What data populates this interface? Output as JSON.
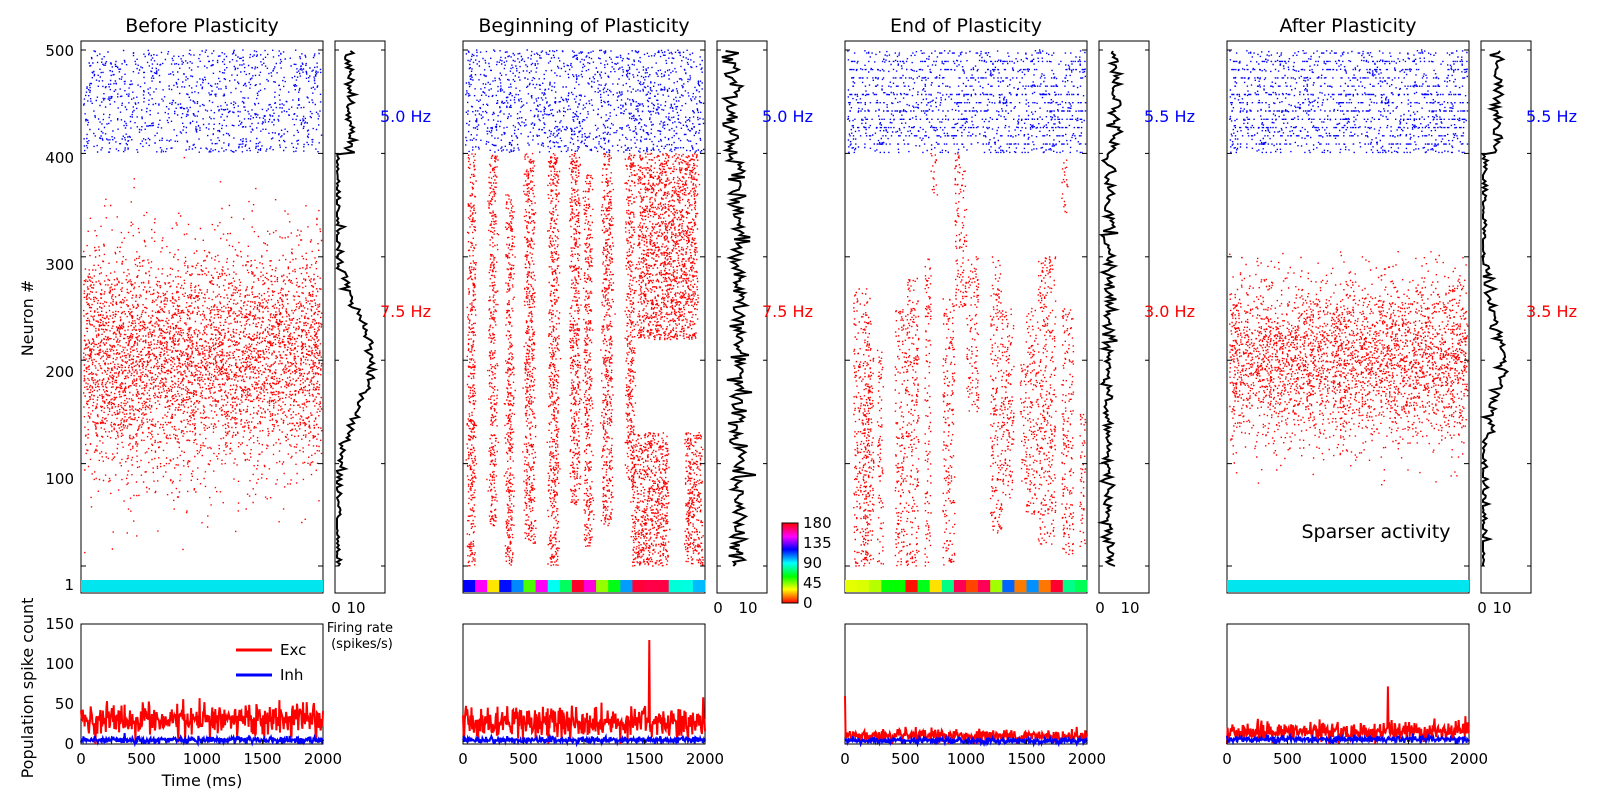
{
  "colors": {
    "excitatory": "#ff0000",
    "inhibitory": "#0000ff",
    "rate_trace": "#000000",
    "uniform_bar": "#00e5ee"
  },
  "chart_data": [
    {
      "type": "scatter",
      "panel": "before",
      "title": "Before Plasticity",
      "ylabel": "Neuron #",
      "x_range_ms": [
        0,
        2000
      ],
      "ylim": [
        1,
        500
      ],
      "y_ticks": [
        "500",
        "400",
        "300",
        "200",
        "100",
        "1"
      ],
      "inh_rate_label": "5.0 Hz",
      "exc_rate_label": "7.5 Hz",
      "excitatory_profile": {
        "center": 200,
        "sd": 55,
        "range": [
          1,
          400
        ]
      },
      "orientation_bar": "uniform",
      "rate_panel": {
        "xlabel": "Firing rate\n(spikes/s)",
        "x_ticks": [
          "0",
          "10"
        ]
      },
      "spike_count": {
        "ylabel": "Population spike count",
        "xlabel": "Time (ms)",
        "ylim": [
          0,
          150
        ],
        "y_ticks": [
          "150",
          "100",
          "50",
          "0"
        ],
        "x_ticks": [
          "0",
          "500",
          "1000",
          "1500",
          "2000"
        ],
        "legend": [
          "Exc",
          "Inh"
        ],
        "exc_mean": 30,
        "inh_mean": 5
      }
    },
    {
      "type": "scatter",
      "panel": "beginning",
      "title": "Beginning of Plasticity",
      "inh_rate_label": "5.0 Hz",
      "exc_rate_label": "7.5 Hz",
      "excitatory_pattern": "vertical bands spanning neurons 1-400",
      "orientation_bar": "multicolor",
      "colorbar": {
        "ticks": [
          "180",
          "135",
          "90",
          "45",
          "0"
        ],
        "range": [
          0,
          180
        ]
      },
      "rate_panel": {
        "x_ticks": [
          "0",
          "10"
        ]
      },
      "spike_count": {
        "x_ticks": [
          "0",
          "500",
          "1000",
          "1500",
          "2000"
        ],
        "exc_mean": 28,
        "inh_mean": 5,
        "peak": {
          "t": 1540,
          "value": 130
        }
      }
    },
    {
      "type": "scatter",
      "panel": "end",
      "title": "End of Plasticity",
      "inh_rate_label": "5.5 Hz",
      "exc_rate_label": "3.0 Hz",
      "excitatory_pattern": "sparse vertical streaks",
      "orientation_bar": "multicolor",
      "rate_panel": {
        "x_ticks": [
          "0",
          "10"
        ]
      },
      "spike_count": {
        "x_ticks": [
          "0",
          "500",
          "1000",
          "1500",
          "2000"
        ],
        "exc_mean": 10,
        "inh_mean": 4,
        "peak": {
          "t": 0,
          "value": 60
        }
      }
    },
    {
      "type": "scatter",
      "panel": "after",
      "title": "After Plasticity",
      "inh_rate_label": "5.5 Hz",
      "exc_rate_label": "3.5 Hz",
      "excitatory_profile": {
        "center": 200,
        "sd": 40,
        "range": [
          75,
          305
        ]
      },
      "annotation": "Sparser activity",
      "orientation_bar": "uniform",
      "rate_panel": {
        "x_ticks": [
          "0",
          "10"
        ]
      },
      "spike_count": {
        "x_ticks": [
          "0",
          "500",
          "1000",
          "1500",
          "2000"
        ],
        "exc_mean": 15,
        "inh_mean": 6,
        "peak": {
          "t": 1330,
          "value": 72
        }
      }
    }
  ]
}
